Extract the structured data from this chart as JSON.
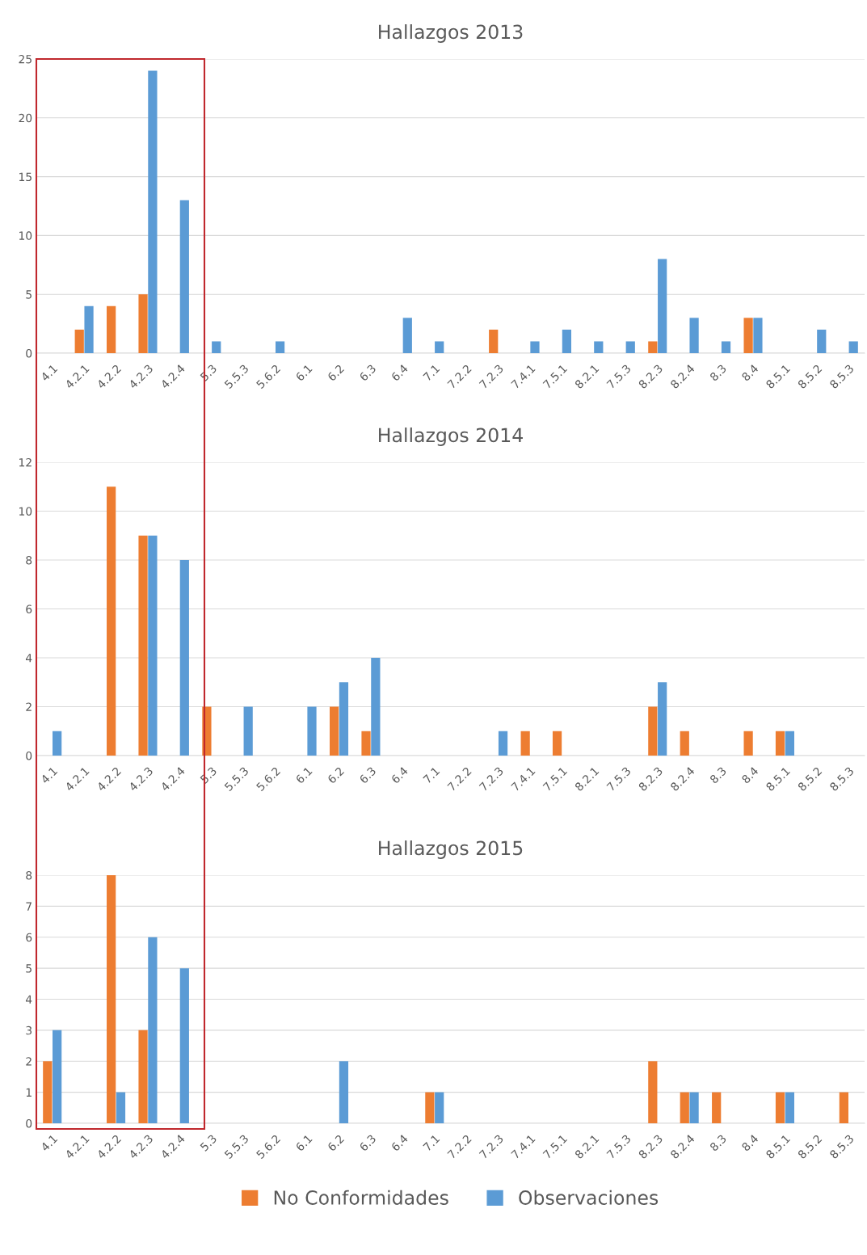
{
  "chart_data": [
    {
      "type": "bar",
      "title": "Hallazgos 2013",
      "categories": [
        "4.1",
        "4.2.1",
        "4.2.2",
        "4.2.3",
        "4.2.4",
        "5.3",
        "5.5.3",
        "5.6.2",
        "6.1",
        "6.2",
        "6.3",
        "6.4",
        "7.1",
        "7.2.2",
        "7.2.3",
        "7.4.1",
        "7.5.1",
        "8.2.1",
        "7.5.3",
        "8.2.3",
        "8.2.4",
        "8.3",
        "8.4",
        "8.5.1",
        "8.5.2",
        "8.5.3"
      ],
      "series": [
        {
          "color": "#ed7d31",
          "values": [
            0,
            2,
            4,
            5,
            0,
            0,
            0,
            0,
            0,
            0,
            0,
            0,
            0,
            0,
            2,
            0,
            0,
            0,
            0,
            1,
            0,
            0,
            3,
            0,
            0,
            0
          ]
        },
        {
          "color": "#5b9bd5",
          "values": [
            0,
            4,
            0,
            24,
            13,
            1,
            0,
            1,
            0,
            0,
            0,
            3,
            1,
            0,
            0,
            1,
            2,
            1,
            1,
            8,
            3,
            1,
            3,
            0,
            2,
            1
          ]
        }
      ],
      "ylim": [
        0,
        25
      ],
      "yticks": [
        0,
        5,
        10,
        15,
        20,
        25
      ],
      "grid": "y"
    },
    {
      "type": "bar",
      "title": "Hallazgos 2014",
      "categories": [
        "4.1",
        "4.2.1",
        "4.2.2",
        "4.2.3",
        "4.2.4",
        "5.3",
        "5.5.3",
        "5.6.2",
        "6.1",
        "6.2",
        "6.3",
        "6.4",
        "7.1",
        "7.2.2",
        "7.2.3",
        "7.4.1",
        "7.5.1",
        "8.2.1",
        "7.5.3",
        "8.2.3",
        "8.2.4",
        "8.3",
        "8.4",
        "8.5.1",
        "8.5.2",
        "8.5.3"
      ],
      "series": [
        {
          "color": "#ed7d31",
          "values": [
            0,
            0,
            11,
            9,
            0,
            2,
            0,
            0,
            0,
            2,
            1,
            0,
            0,
            0,
            0,
            1,
            1,
            0,
            0,
            2,
            1,
            0,
            1,
            1,
            0,
            0
          ]
        },
        {
          "color": "#5b9bd5",
          "values": [
            1,
            0,
            0,
            9,
            8,
            0,
            2,
            0,
            2,
            3,
            4,
            0,
            0,
            0,
            1,
            0,
            0,
            0,
            0,
            3,
            0,
            0,
            0,
            1,
            0,
            0
          ]
        }
      ],
      "ylim": [
        0,
        12
      ],
      "yticks": [
        0,
        2,
        4,
        6,
        8,
        10,
        12
      ],
      "grid": "y"
    },
    {
      "type": "bar",
      "title": "Hallazgos 2015",
      "categories": [
        "4.1",
        "4.2.1",
        "4.2.2",
        "4.2.3",
        "4.2.4",
        "5.3",
        "5.5.3",
        "5.6.2",
        "6.1",
        "6.2",
        "6.3",
        "6.4",
        "7.1",
        "7.2.2",
        "7.2.3",
        "7.4.1",
        "7.5.1",
        "8.2.1",
        "7.5.3",
        "8.2.3",
        "8.2.4",
        "8.3",
        "8.4",
        "8.5.1",
        "8.5.2",
        "8.5.3"
      ],
      "series": [
        {
          "name": "No Conformidades",
          "color": "#ed7d31",
          "values": [
            2,
            0,
            8,
            3,
            0,
            0,
            0,
            0,
            0,
            0,
            0,
            0,
            1,
            0,
            0,
            0,
            0,
            0,
            0,
            2,
            1,
            1,
            0,
            1,
            0,
            1
          ]
        },
        {
          "name": "Observaciones",
          "color": "#5b9bd5",
          "values": [
            3,
            0,
            1,
            6,
            5,
            0,
            0,
            0,
            0,
            2,
            0,
            0,
            1,
            0,
            0,
            0,
            0,
            0,
            0,
            0,
            1,
            0,
            0,
            1,
            0,
            0
          ]
        }
      ],
      "ylim": [
        0,
        8
      ],
      "yticks": [
        0,
        1,
        2,
        3,
        4,
        5,
        6,
        7,
        8
      ],
      "grid": "y",
      "legend": "bottom"
    }
  ]
}
